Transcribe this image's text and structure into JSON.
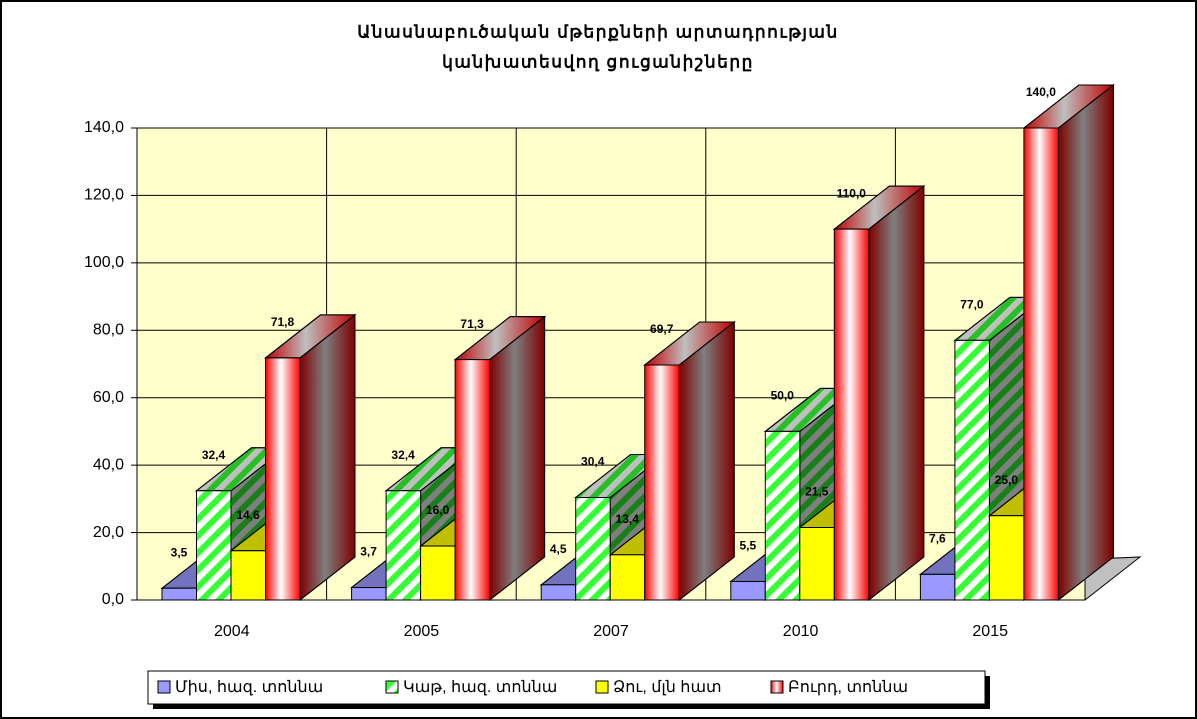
{
  "chart_data": {
    "type": "bar3d",
    "title": [
      "Անասնաբուծական մթերքների արտադրության",
      "կանխատեսվող ցուցանիշները"
    ],
    "categories": [
      "2004",
      "2005",
      "2007",
      "2010",
      "2015"
    ],
    "series": [
      {
        "name": "Միս, հազ. տոննա",
        "color": "#9999ff",
        "values": [
          3.5,
          3.7,
          4.5,
          5.5,
          7.6
        ],
        "value_labels": [
          "3,5",
          "3,7",
          "4,5",
          "5,5",
          "7,6"
        ]
      },
      {
        "name": "Կաթ, հազ. տոննա",
        "color": "#33ff33",
        "values": [
          32.4,
          32.4,
          30.4,
          50.0,
          77.0
        ],
        "value_labels": [
          "32,4",
          "32,4",
          "30,4",
          "50,0",
          "77,0"
        ]
      },
      {
        "name": "Ձու, մլն հատ",
        "color": "#ffff00",
        "values": [
          14.6,
          16.0,
          13.4,
          21.5,
          25.0
        ],
        "value_labels": [
          "14,6",
          "16,0",
          "13,4",
          "21,5",
          "25,0"
        ]
      },
      {
        "name": "Բուրդ, տոննա",
        "color": "#ff0000",
        "values": [
          71.8,
          71.3,
          69.7,
          110.0,
          140.0
        ],
        "value_labels": [
          "71,8",
          "71,3",
          "69,7",
          "110,0",
          "140,0"
        ]
      }
    ],
    "ylim": [
      0,
      140
    ],
    "yticks": [
      {
        "value": 0,
        "label": "0,0"
      },
      {
        "value": 20,
        "label": "20,0"
      },
      {
        "value": 40,
        "label": "40,0"
      },
      {
        "value": 60,
        "label": "60,0"
      },
      {
        "value": 80,
        "label": "80,0"
      },
      {
        "value": 100,
        "label": "100,0"
      },
      {
        "value": 120,
        "label": "120,0"
      },
      {
        "value": 140,
        "label": "140,0"
      }
    ],
    "grid": true
  }
}
